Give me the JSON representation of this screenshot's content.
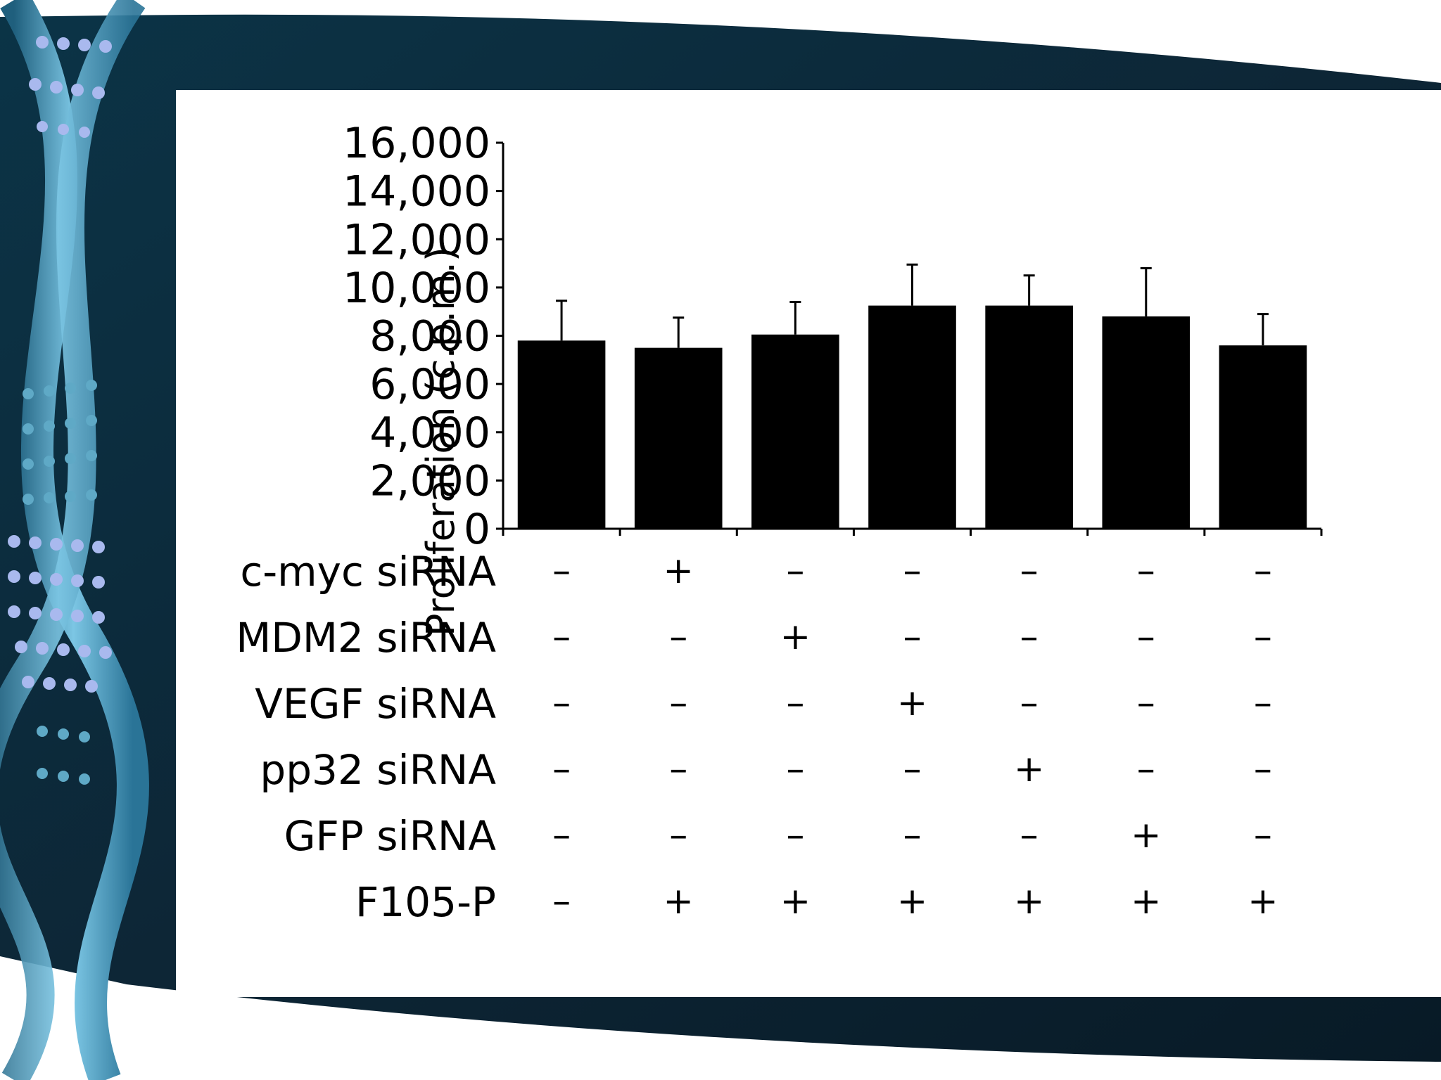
{
  "chart_data": {
    "type": "bar",
    "title": "",
    "ylabel": "Proliferation (c.p.m.)",
    "xlabel": "",
    "ylim": [
      0,
      16000
    ],
    "yticks": [
      0,
      2000,
      4000,
      6000,
      8000,
      10000,
      12000,
      14000,
      16000
    ],
    "ytick_labels": [
      "0",
      "2,000",
      "4,000",
      "6,000",
      "8,000",
      "10,000",
      "12,000",
      "14,000",
      "16,000"
    ],
    "values": [
      7800,
      7500,
      8050,
      9250,
      9250,
      8800,
      7600
    ],
    "errors": [
      1650,
      1250,
      1350,
      1700,
      1250,
      2000,
      1300
    ],
    "bar_color": "#000000",
    "grid": false,
    "legend": "none",
    "conditions": [
      {
        "label": "c-myc siRNA",
        "marks": [
          "–",
          "+",
          "–",
          "–",
          "–",
          "–",
          "–"
        ]
      },
      {
        "label": "MDM2 siRNA",
        "marks": [
          "–",
          "–",
          "+",
          "–",
          "–",
          "–",
          "–"
        ]
      },
      {
        "label": "VEGF siRNA",
        "marks": [
          "–",
          "–",
          "–",
          "+",
          "–",
          "–",
          "–"
        ]
      },
      {
        "label": "pp32 siRNA",
        "marks": [
          "–",
          "–",
          "–",
          "–",
          "+",
          "–",
          "–"
        ]
      },
      {
        "label": "GFP siRNA",
        "marks": [
          "–",
          "–",
          "–",
          "–",
          "–",
          "+",
          "–"
        ]
      },
      {
        "label": "F105-P",
        "marks": [
          "–",
          "+",
          "+",
          "+",
          "+",
          "+",
          "+"
        ]
      }
    ]
  },
  "theme": {
    "background": "#0d2636",
    "panel": "#ffffff",
    "helix_accent": "#4fa3c7",
    "helix_light": "#9fd3ea",
    "helix_dots": "#b9c8f2"
  }
}
